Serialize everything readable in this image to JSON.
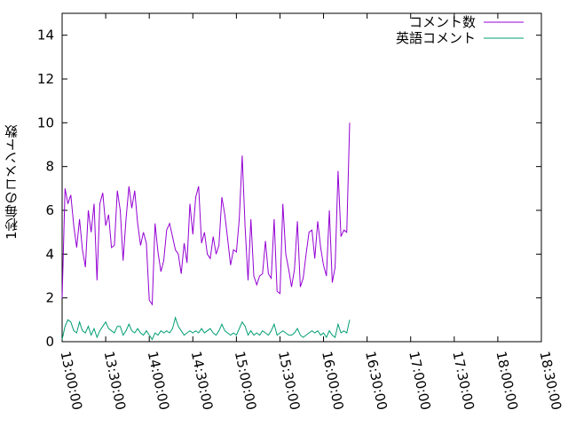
{
  "chart_data": {
    "type": "line",
    "ylabel": "1秒毎のコメント数",
    "ylim": [
      0,
      15
    ],
    "yticks": [
      "0",
      "2",
      "4",
      "6",
      "8",
      "10",
      "12",
      "14"
    ],
    "ytick_values": [
      0,
      2,
      4,
      6,
      8,
      10,
      12,
      14
    ],
    "xlim_seconds": [
      46800,
      66600
    ],
    "xticks": [
      "13:00:00",
      "13:30:00",
      "14:00:00",
      "14:30:00",
      "15:00:00",
      "15:30:00",
      "16:00:00",
      "16:30:00",
      "17:00:00",
      "17:30:00",
      "18:00:00",
      "18:30:00"
    ],
    "xtick_seconds": [
      46800,
      48600,
      50400,
      52200,
      54000,
      55800,
      57600,
      59400,
      61200,
      63000,
      64800,
      66600
    ],
    "legend_position": "top-right",
    "grid": false,
    "x_start": "13:00:00",
    "x_step_seconds": 120,
    "series": [
      {
        "name": "コメント数",
        "color": "#9400d3",
        "values": [
          2.0,
          7.0,
          6.3,
          6.7,
          5.3,
          4.3,
          5.6,
          4.2,
          3.4,
          6.0,
          5.0,
          6.3,
          2.8,
          6.3,
          6.8,
          5.3,
          5.8,
          4.3,
          4.4,
          6.9,
          6.0,
          3.7,
          5.6,
          7.1,
          6.1,
          6.9,
          5.4,
          4.4,
          5.0,
          4.5,
          1.9,
          1.7,
          5.4,
          4.1,
          3.2,
          3.7,
          5.1,
          5.4,
          4.8,
          4.2,
          4.0,
          3.1,
          4.5,
          3.6,
          6.3,
          4.9,
          6.6,
          7.1,
          4.5,
          5.0,
          4.0,
          3.8,
          4.8,
          4.0,
          4.4,
          6.6,
          5.8,
          4.7,
          3.5,
          4.2,
          4.1,
          5.6,
          8.5,
          5.2,
          2.8,
          5.6,
          3.0,
          2.6,
          3.0,
          3.1,
          4.6,
          3.1,
          2.9,
          5.6,
          2.3,
          2.2,
          6.3,
          4.0,
          3.3,
          2.5,
          3.3,
          5.5,
          2.5,
          2.9,
          4.0,
          5.0,
          5.1,
          3.8,
          5.5,
          4.3,
          3.5,
          3.0,
          6.0,
          2.7,
          3.4,
          7.8,
          4.8,
          5.1,
          5.0,
          10.0
        ]
      },
      {
        "name": "英語コメント",
        "color": "#009e73",
        "values": [
          0.1,
          0.7,
          1.0,
          0.9,
          0.5,
          0.4,
          0.9,
          0.5,
          0.4,
          0.7,
          0.3,
          0.6,
          0.2,
          0.5,
          0.7,
          0.9,
          0.6,
          0.5,
          0.4,
          0.7,
          0.7,
          0.3,
          0.5,
          0.8,
          0.5,
          0.4,
          0.6,
          0.4,
          0.3,
          0.5,
          0.3,
          0.1,
          0.4,
          0.3,
          0.5,
          0.4,
          0.5,
          0.4,
          0.6,
          1.1,
          0.7,
          0.5,
          0.3,
          0.4,
          0.5,
          0.4,
          0.5,
          0.4,
          0.6,
          0.4,
          0.5,
          0.6,
          0.4,
          0.3,
          0.5,
          0.8,
          0.5,
          0.4,
          0.3,
          0.4,
          0.3,
          0.6,
          0.9,
          0.7,
          0.3,
          0.5,
          0.3,
          0.4,
          0.3,
          0.5,
          0.4,
          0.3,
          0.5,
          0.8,
          0.3,
          0.4,
          0.5,
          0.4,
          0.3,
          0.3,
          0.4,
          0.6,
          0.3,
          0.2,
          0.3,
          0.4,
          0.5,
          0.4,
          0.5,
          0.3,
          0.4,
          0.2,
          0.5,
          0.3,
          0.2,
          0.8,
          0.4,
          0.5,
          0.4,
          1.0
        ]
      }
    ]
  }
}
